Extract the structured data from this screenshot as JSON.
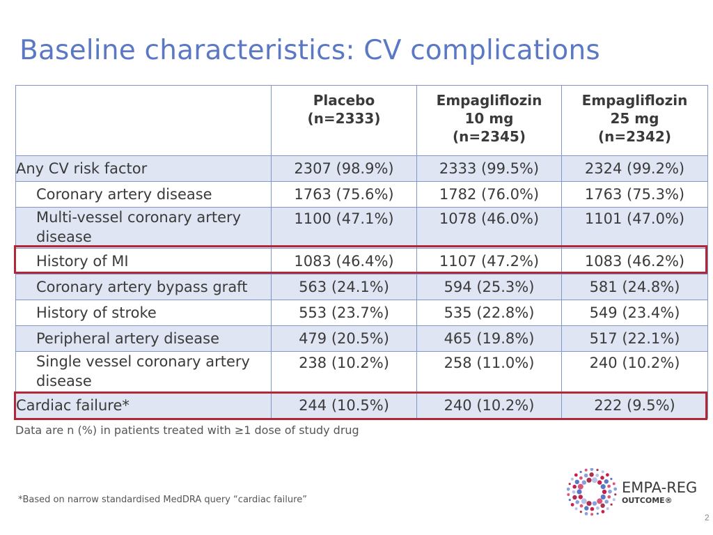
{
  "title": "Baseline characteristics: CV complications",
  "table": {
    "columns": [
      {
        "lines": [
          "Placebo",
          "(n=2333)"
        ]
      },
      {
        "lines": [
          "Empagliflozin",
          "10 mg",
          "(n=2345)"
        ]
      },
      {
        "lines": [
          "Empagliflozin",
          "25 mg",
          "(n=2342)"
        ]
      }
    ],
    "rows": [
      {
        "label": "Any CV risk factor",
        "values": [
          "2307 (98.9%)",
          "2333 (99.5%)",
          "2324 (99.2%)"
        ]
      },
      {
        "label": "Coronary artery disease",
        "values": [
          "1763 (75.6%)",
          "1782 (76.0%)",
          "1763 (75.3%)"
        ]
      },
      {
        "label": "Multi-vessel coronary artery disease",
        "values": [
          "1100 (47.1%)",
          "1078 (46.0%)",
          "1101 (47.0%)"
        ]
      },
      {
        "label": "History of MI",
        "values": [
          "1083 (46.4%)",
          "1107 (47.2%)",
          "1083 (46.2%)"
        ],
        "highlighted": true
      },
      {
        "label": "Coronary artery bypass graft",
        "values": [
          "563 (24.1%)",
          "594 (25.3%)",
          "581 (24.8%)"
        ]
      },
      {
        "label": "History of stroke",
        "values": [
          "553 (23.7%)",
          "535 (22.8%)",
          "549 (23.4%)"
        ]
      },
      {
        "label": "Peripheral artery disease",
        "values": [
          "479 (20.5%)",
          "465 (19.8%)",
          "517 (22.1%)"
        ]
      },
      {
        "label": "Single vessel coronary artery disease",
        "values": [
          "238 (10.2%)",
          "258 (11.0%)",
          "240 (10.2%)"
        ]
      },
      {
        "label": "Cardiac failure*",
        "values": [
          "244 (10.5%)",
          "240 (10.2%)",
          "222 (9.5%)"
        ],
        "highlighted": true
      }
    ]
  },
  "footnote_data": "Data are n (%) in patients treated with ≥1 dose of study drug",
  "footnote_asterisk": "*Based on narrow standardised MedDRA query “cardiac failure”",
  "logo": {
    "line1": "EMPA-REG",
    "line2": "OUTCOME®",
    "icon": "dotted-ring-logo-icon"
  },
  "page_number": "2",
  "colors": {
    "title": "#5a78c4",
    "border": "#7f95cc",
    "row_tint": "#dfe5f3",
    "highlight": "#b0273a"
  }
}
